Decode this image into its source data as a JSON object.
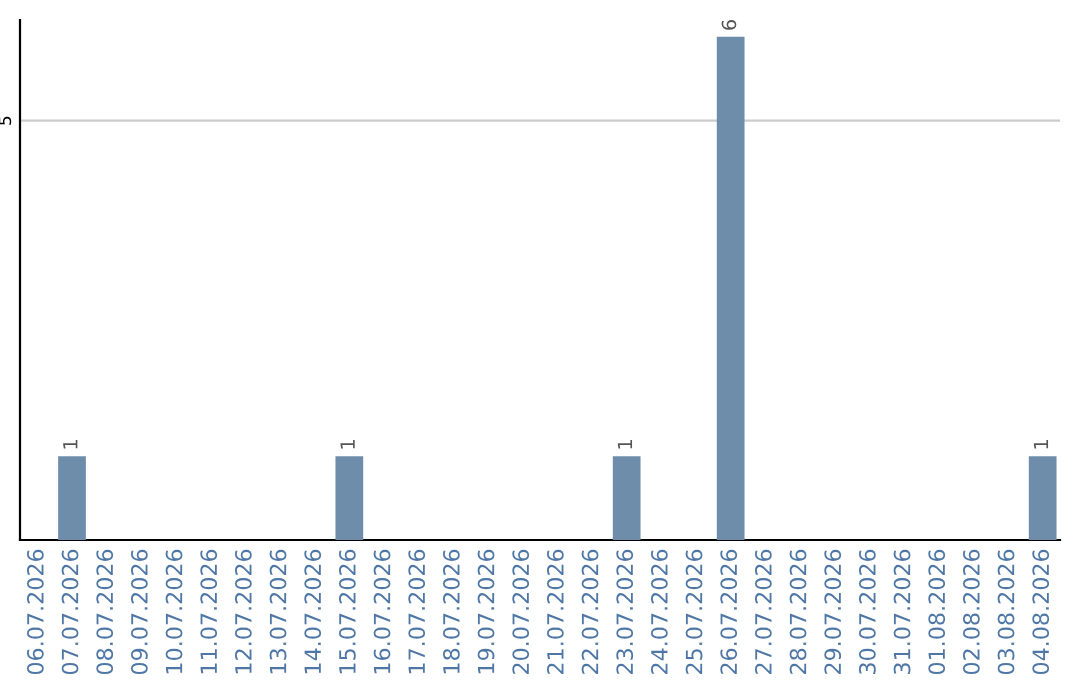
{
  "chart_data": {
    "type": "bar",
    "categories": [
      "06.07.2026",
      "07.07.2026",
      "08.07.2026",
      "09.07.2026",
      "10.07.2026",
      "11.07.2026",
      "12.07.2026",
      "13.07.2026",
      "14.07.2026",
      "15.07.2026",
      "16.07.2026",
      "17.07.2026",
      "18.07.2026",
      "19.07.2026",
      "20.07.2026",
      "21.07.2026",
      "22.07.2026",
      "23.07.2026",
      "24.07.2026",
      "25.07.2026",
      "26.07.2026",
      "27.07.2026",
      "28.07.2026",
      "29.07.2026",
      "30.07.2026",
      "31.07.2026",
      "01.08.2026",
      "02.08.2026",
      "03.08.2026",
      "04.08.2026"
    ],
    "values": [
      0,
      1,
      0,
      0,
      0,
      0,
      0,
      0,
      0,
      1,
      0,
      0,
      0,
      0,
      0,
      0,
      0,
      1,
      0,
      0,
      6,
      0,
      0,
      0,
      0,
      0,
      0,
      0,
      0,
      1
    ],
    "value_labels": [
      null,
      "1",
      null,
      null,
      null,
      null,
      null,
      null,
      null,
      "1",
      null,
      null,
      null,
      null,
      null,
      null,
      null,
      "1",
      null,
      null,
      "6",
      null,
      null,
      null,
      null,
      null,
      null,
      null,
      null,
      "1"
    ],
    "color": "#6e8dab",
    "ylim": [
      0,
      6.2
    ],
    "yticks": [
      5
    ],
    "grid": "y"
  }
}
